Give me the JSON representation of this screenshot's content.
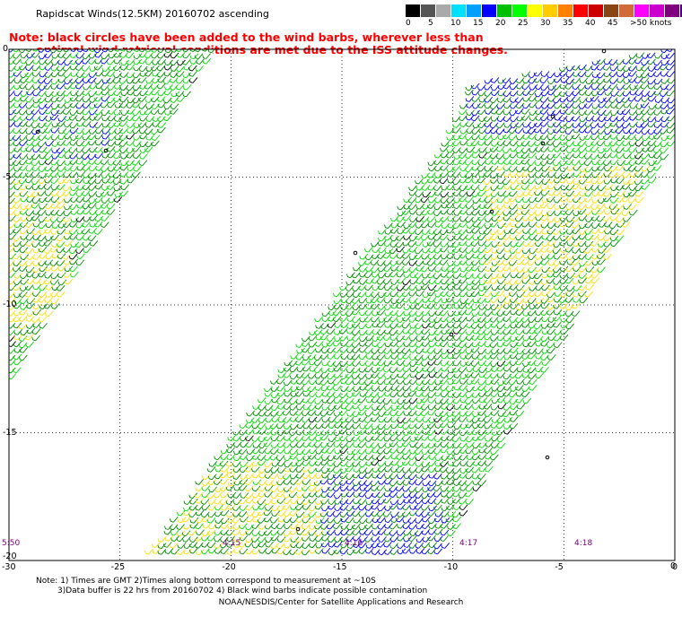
{
  "title": "Rapidscat Winds(12.5KM) 20160702 ascending",
  "legend": {
    "colors": [
      "#000000",
      "#555555",
      "#aaaaaa",
      "#00e0ff",
      "#00a0ff",
      "#0000ff",
      "#00c000",
      "#00ff00",
      "#ffff00",
      "#ffcc00",
      "#ff8000",
      "#ff0000",
      "#cc0000",
      "#8b4513",
      "#d26b3b",
      "#ff00ff",
      "#cc00cc",
      "#800080",
      "#4b0082",
      "#300060"
    ],
    "labels": [
      "0",
      "5",
      "10",
      "15",
      "20",
      "25",
      "30",
      "35",
      "40",
      "45",
      ">50 knots"
    ]
  },
  "note": {
    "line1": "Note: black circles have been added to the wind barbs, wherever less than",
    "line2": "optimal wind retrieval conditions are met due to the ISS attitude changes."
  },
  "axes": {
    "lat_labels": [
      "0",
      "-5",
      "-10",
      "-15",
      "-20"
    ],
    "lon_labels": [
      "-30",
      "-25",
      "-20",
      "-15",
      "-10",
      "-5",
      "0"
    ],
    "lat_label_left": "0",
    "lat_label_right": "0"
  },
  "map": {
    "lon_range": [
      -30,
      0
    ],
    "lat_range": [
      -20,
      0
    ],
    "grid": true,
    "barb_colors": {
      "green_light": "#00e000",
      "green_dark": "#009000",
      "blue": "#0000ff",
      "yellow": "#ffe000",
      "contaminated": "#000000"
    }
  },
  "pass_times": [
    "5:50",
    "4:15",
    "4:16",
    "4:17",
    "4:18"
  ],
  "footnotes": {
    "line1": "Note: 1) Times are GMT 2)Times along bottom correspond to measurement at ~10S",
    "line2": "3)Data buffer is 22 hrs from 20160702 4) Black wind barbs indicate possible contamination"
  },
  "credit": "NOAA/NESDIS/Center for Satellite Applications and Research"
}
